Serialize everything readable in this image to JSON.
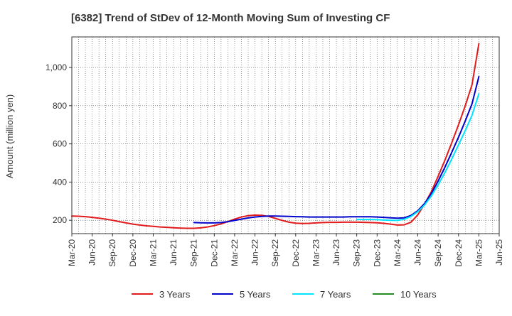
{
  "chart_data": {
    "type": "line",
    "title": "[6382]  Trend of StDev of 12-Month Moving Sum of Investing CF",
    "ylabel": "Amount (million yen)",
    "xlabel": "",
    "x_ticks": [
      "Mar-20",
      "Jun-20",
      "Sep-20",
      "Dec-20",
      "Mar-21",
      "Jun-21",
      "Sep-21",
      "Dec-21",
      "Mar-22",
      "Jun-22",
      "Sep-22",
      "Dec-22",
      "Mar-23",
      "Jun-23",
      "Sep-23",
      "Dec-23",
      "Mar-24",
      "Jun-24",
      "Sep-24",
      "Dec-24",
      "Mar-25",
      "Jun-25"
    ],
    "y_ticks": [
      200,
      400,
      600,
      800,
      1000
    ],
    "y_tick_labels": [
      "200",
      "400",
      "600",
      "800",
      "1,000"
    ],
    "ylim": [
      130,
      1160
    ],
    "grid": true,
    "legend_position": "bottom",
    "series": [
      {
        "name": "3 Years",
        "color": "#e31a1c",
        "points": [
          [
            "Mar-20",
            222
          ],
          [
            "Apr-20",
            221
          ],
          [
            "May-20",
            219
          ],
          [
            "Jun-20",
            215
          ],
          [
            "Jul-20",
            211
          ],
          [
            "Aug-20",
            206
          ],
          [
            "Sep-20",
            200
          ],
          [
            "Oct-20",
            193
          ],
          [
            "Nov-20",
            186
          ],
          [
            "Dec-20",
            180
          ],
          [
            "Jan-21",
            175
          ],
          [
            "Feb-21",
            171
          ],
          [
            "Mar-21",
            168
          ],
          [
            "Apr-21",
            165
          ],
          [
            "May-21",
            163
          ],
          [
            "Jun-21",
            161
          ],
          [
            "Jul-21",
            159
          ],
          [
            "Aug-21",
            158
          ],
          [
            "Sep-21",
            158
          ],
          [
            "Oct-21",
            160
          ],
          [
            "Nov-21",
            165
          ],
          [
            "Dec-21",
            172
          ],
          [
            "Jan-22",
            181
          ],
          [
            "Feb-22",
            193
          ],
          [
            "Mar-22",
            206
          ],
          [
            "Apr-22",
            217
          ],
          [
            "May-22",
            224
          ],
          [
            "Jun-22",
            227
          ],
          [
            "Jul-22",
            226
          ],
          [
            "Aug-22",
            220
          ],
          [
            "Sep-22",
            210
          ],
          [
            "Oct-22",
            199
          ],
          [
            "Nov-22",
            190
          ],
          [
            "Dec-22",
            185
          ],
          [
            "Jan-23",
            183
          ],
          [
            "Feb-23",
            184
          ],
          [
            "Mar-23",
            186
          ],
          [
            "Apr-23",
            188
          ],
          [
            "May-23",
            189
          ],
          [
            "Jun-23",
            189
          ],
          [
            "Jul-23",
            190
          ],
          [
            "Aug-23",
            190
          ],
          [
            "Sep-23",
            190
          ],
          [
            "Oct-23",
            189
          ],
          [
            "Nov-23",
            188
          ],
          [
            "Dec-23",
            187
          ],
          [
            "Jan-24",
            184
          ],
          [
            "Feb-24",
            180
          ],
          [
            "Mar-24",
            175
          ],
          [
            "Apr-24",
            176
          ],
          [
            "May-24",
            190
          ],
          [
            "Jun-24",
            228
          ],
          [
            "Jul-24",
            285
          ],
          [
            "Aug-24",
            350
          ],
          [
            "Sep-24",
            430
          ],
          [
            "Oct-24",
            515
          ],
          [
            "Nov-24",
            605
          ],
          [
            "Dec-24",
            700
          ],
          [
            "Jan-25",
            800
          ],
          [
            "Feb-25",
            910
          ],
          [
            "Mar-25",
            1125
          ]
        ]
      },
      {
        "name": "5 Years",
        "color": "#0000cc",
        "points": [
          [
            "Sep-21",
            188
          ],
          [
            "Oct-21",
            187
          ],
          [
            "Nov-21",
            186
          ],
          [
            "Dec-21",
            186
          ],
          [
            "Jan-22",
            188
          ],
          [
            "Feb-22",
            193
          ],
          [
            "Mar-22",
            199
          ],
          [
            "Apr-22",
            206
          ],
          [
            "May-22",
            212
          ],
          [
            "Jun-22",
            217
          ],
          [
            "Jul-22",
            220
          ],
          [
            "Aug-22",
            222
          ],
          [
            "Sep-22",
            222
          ],
          [
            "Oct-22",
            221
          ],
          [
            "Nov-22",
            220
          ],
          [
            "Dec-22",
            219
          ],
          [
            "Jan-23",
            218
          ],
          [
            "Feb-23",
            217
          ],
          [
            "Mar-23",
            217
          ],
          [
            "Apr-23",
            217
          ],
          [
            "May-23",
            217
          ],
          [
            "Jun-23",
            217
          ],
          [
            "Jul-23",
            217
          ],
          [
            "Aug-23",
            218
          ],
          [
            "Sep-23",
            218
          ],
          [
            "Oct-23",
            218
          ],
          [
            "Nov-23",
            218
          ],
          [
            "Dec-23",
            217
          ],
          [
            "Jan-24",
            215
          ],
          [
            "Feb-24",
            213
          ],
          [
            "Mar-24",
            211
          ],
          [
            "Apr-24",
            213
          ],
          [
            "May-24",
            225
          ],
          [
            "Jun-24",
            250
          ],
          [
            "Jul-24",
            288
          ],
          [
            "Aug-24",
            340
          ],
          [
            "Sep-24",
            405
          ],
          [
            "Oct-24",
            478
          ],
          [
            "Nov-24",
            555
          ],
          [
            "Dec-24",
            635
          ],
          [
            "Jan-25",
            720
          ],
          [
            "Feb-25",
            810
          ],
          [
            "Mar-25",
            952
          ]
        ]
      },
      {
        "name": "7 Years",
        "color": "#00e5ff",
        "points": [
          [
            "Sep-23",
            204
          ],
          [
            "Oct-23",
            204
          ],
          [
            "Nov-23",
            204
          ],
          [
            "Dec-23",
            203
          ],
          [
            "Jan-24",
            201
          ],
          [
            "Feb-24",
            200
          ],
          [
            "Mar-24",
            199
          ],
          [
            "Apr-24",
            205
          ],
          [
            "May-24",
            220
          ],
          [
            "Jun-24",
            245
          ],
          [
            "Jul-24",
            280
          ],
          [
            "Aug-24",
            328
          ],
          [
            "Sep-24",
            385
          ],
          [
            "Oct-24",
            450
          ],
          [
            "Nov-24",
            520
          ],
          [
            "Dec-24",
            595
          ],
          [
            "Jan-25",
            670
          ],
          [
            "Feb-25",
            750
          ],
          [
            "Mar-25",
            862
          ]
        ]
      },
      {
        "name": "10 Years",
        "color": "#228b22",
        "points": []
      }
    ]
  }
}
